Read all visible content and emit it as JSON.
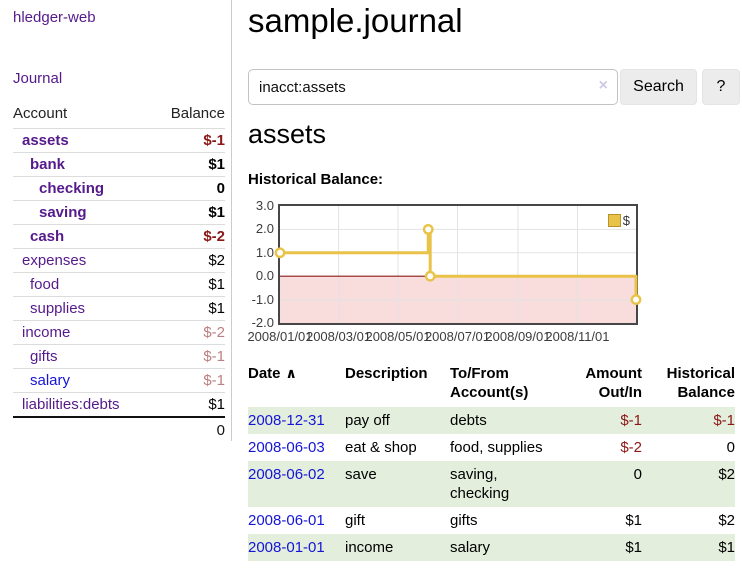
{
  "colors": {
    "accent_purple": "#551a8b",
    "link_blue": "#1515d6",
    "negative": "#8b1717",
    "negative_faded": "#bd7f7f",
    "row_stripe": "#e3eedd",
    "series_gold": "#e9c348",
    "zero_line": "#8b1a1a",
    "negative_region": "#f9dcdc",
    "grid_line": "#e3e3e3"
  },
  "icons": {
    "clear": "×",
    "sort_asc": "∧"
  },
  "sidebar": {
    "brand": "hledger-web",
    "nav": [
      {
        "label": "Journal"
      }
    ],
    "accounts_table": {
      "col_account": "Account",
      "col_balance": "Balance",
      "rows": [
        {
          "account": "assets",
          "indent": 1,
          "emph": true,
          "balance": "$-1",
          "balance_style": "neg-bold"
        },
        {
          "account": "bank",
          "indent": 2,
          "emph": true,
          "balance": "$1",
          "balance_style": "bold"
        },
        {
          "account": "checking",
          "indent": 3,
          "emph": true,
          "balance": "0",
          "balance_style": "bold"
        },
        {
          "account": "saving",
          "indent": 3,
          "emph": true,
          "balance": "$1",
          "balance_style": "bold"
        },
        {
          "account": "cash",
          "indent": 2,
          "emph": true,
          "balance": "$-2",
          "balance_style": "neg-bold"
        },
        {
          "account": "expenses",
          "indent": 1,
          "emph": false,
          "balance": "$2",
          "balance_style": "plain"
        },
        {
          "account": "food",
          "indent": 2,
          "emph": false,
          "balance": "$1",
          "balance_style": "plain"
        },
        {
          "account": "supplies",
          "indent": 2,
          "emph": false,
          "balance": "$1",
          "balance_style": "plain"
        },
        {
          "account": "income",
          "indent": 1,
          "emph": false,
          "balance": "$-2",
          "balance_style": "neg-faded"
        },
        {
          "account": "gifts",
          "indent": 2,
          "emph": false,
          "balance": "$-1",
          "balance_style": "neg-faded"
        },
        {
          "account": "salary",
          "indent": 2,
          "emph": false,
          "link_color": "blue",
          "balance": "$-1",
          "balance_style": "neg-faded"
        },
        {
          "account": "liabilities:debts",
          "indent": 1,
          "emph": false,
          "balance": "$1",
          "balance_style": "plain"
        }
      ],
      "total": "0"
    }
  },
  "main": {
    "title": "sample.journal",
    "search": {
      "value": "inacct:assets",
      "button_label": "Search",
      "help_label": "?"
    },
    "register_heading": "assets"
  },
  "chart_data": {
    "type": "line",
    "title": "Historical Balance:",
    "step": true,
    "series": [
      {
        "name": "$",
        "points": [
          [
            "2008-01-01",
            1
          ],
          [
            "2008-06-01",
            2
          ],
          [
            "2008-06-03",
            0
          ],
          [
            "2008-12-31",
            -1
          ]
        ]
      }
    ],
    "x_range": [
      "2008-01-01",
      "2008-12-31"
    ],
    "x_ticks": [
      {
        "date": "2008-01-01",
        "label": "2008/01/01"
      },
      {
        "date": "2008-03-01",
        "label": "2008/03/01"
      },
      {
        "date": "2008-05-01",
        "label": "2008/05/01"
      },
      {
        "date": "2008-07-01",
        "label": "2008/07/01"
      },
      {
        "date": "2008-09-01",
        "label": "2008/09/01"
      },
      {
        "date": "2008-11-01",
        "label": "2008/11/01"
      }
    ],
    "y_ticks": [
      {
        "v": 3,
        "label": "3.0"
      },
      {
        "v": 2,
        "label": "2.0"
      },
      {
        "v": 1,
        "label": "1.0"
      },
      {
        "v": 0,
        "label": "0.0"
      },
      {
        "v": -1,
        "label": "-1.0"
      },
      {
        "v": -2,
        "label": "-2.0"
      }
    ],
    "ylim": [
      -2,
      3
    ],
    "grid": true,
    "legend_position": "top-right"
  },
  "table": {
    "headers": [
      {
        "label": "Date"
      },
      {
        "label": "Description"
      },
      {
        "label": "To/From Account(s)"
      },
      {
        "label": "Amount Out/In"
      },
      {
        "label": "Historical Balance"
      }
    ],
    "rows": [
      {
        "date": "2008-12-31",
        "description": "pay off",
        "accounts": "debts",
        "amount": "$-1",
        "balance": "$-1"
      },
      {
        "date": "2008-06-03",
        "description": "eat & shop",
        "accounts": "food, supplies",
        "amount": "$-2",
        "balance": "0"
      },
      {
        "date": "2008-06-02",
        "description": "save",
        "accounts": "saving, checking",
        "amount": "0",
        "balance": "$2"
      },
      {
        "date": "2008-06-01",
        "description": "gift",
        "accounts": "gifts",
        "amount": "$1",
        "balance": "$2"
      },
      {
        "date": "2008-01-01",
        "description": "income",
        "accounts": "salary",
        "amount": "$1",
        "balance": "$1"
      }
    ]
  }
}
